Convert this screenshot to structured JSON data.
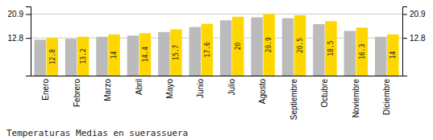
{
  "chart_data": {
    "type": "bar",
    "title": "Temperaturas Medias en suerassuera",
    "categories": [
      "Enero",
      "Febrero",
      "Marzo",
      "Abril",
      "Mayo",
      "Junio",
      "Julio",
      "Agosto",
      "Septiembre",
      "Octubre",
      "Noviembre",
      "Diciembre"
    ],
    "series": [
      {
        "color": "#BBBBBB",
        "values": [
          12.2,
          12.5,
          13.2,
          13.6,
          14.8,
          16.5,
          18.8,
          19.8,
          19.5,
          17.5,
          15.2,
          13.2
        ]
      },
      {
        "color": "#FFD700",
        "data_labels": true,
        "values": [
          12.8,
          13.2,
          14.0,
          14.4,
          15.7,
          17.6,
          20.0,
          20.9,
          20.5,
          18.5,
          16.3,
          14.0
        ]
      }
    ],
    "ylim": [
      0,
      23.5
    ],
    "yticks": [
      12.8,
      20.9
    ],
    "y2lim": [
      0,
      23.5
    ],
    "y2ticks": [
      12.8,
      20.9
    ],
    "grid": true
  }
}
